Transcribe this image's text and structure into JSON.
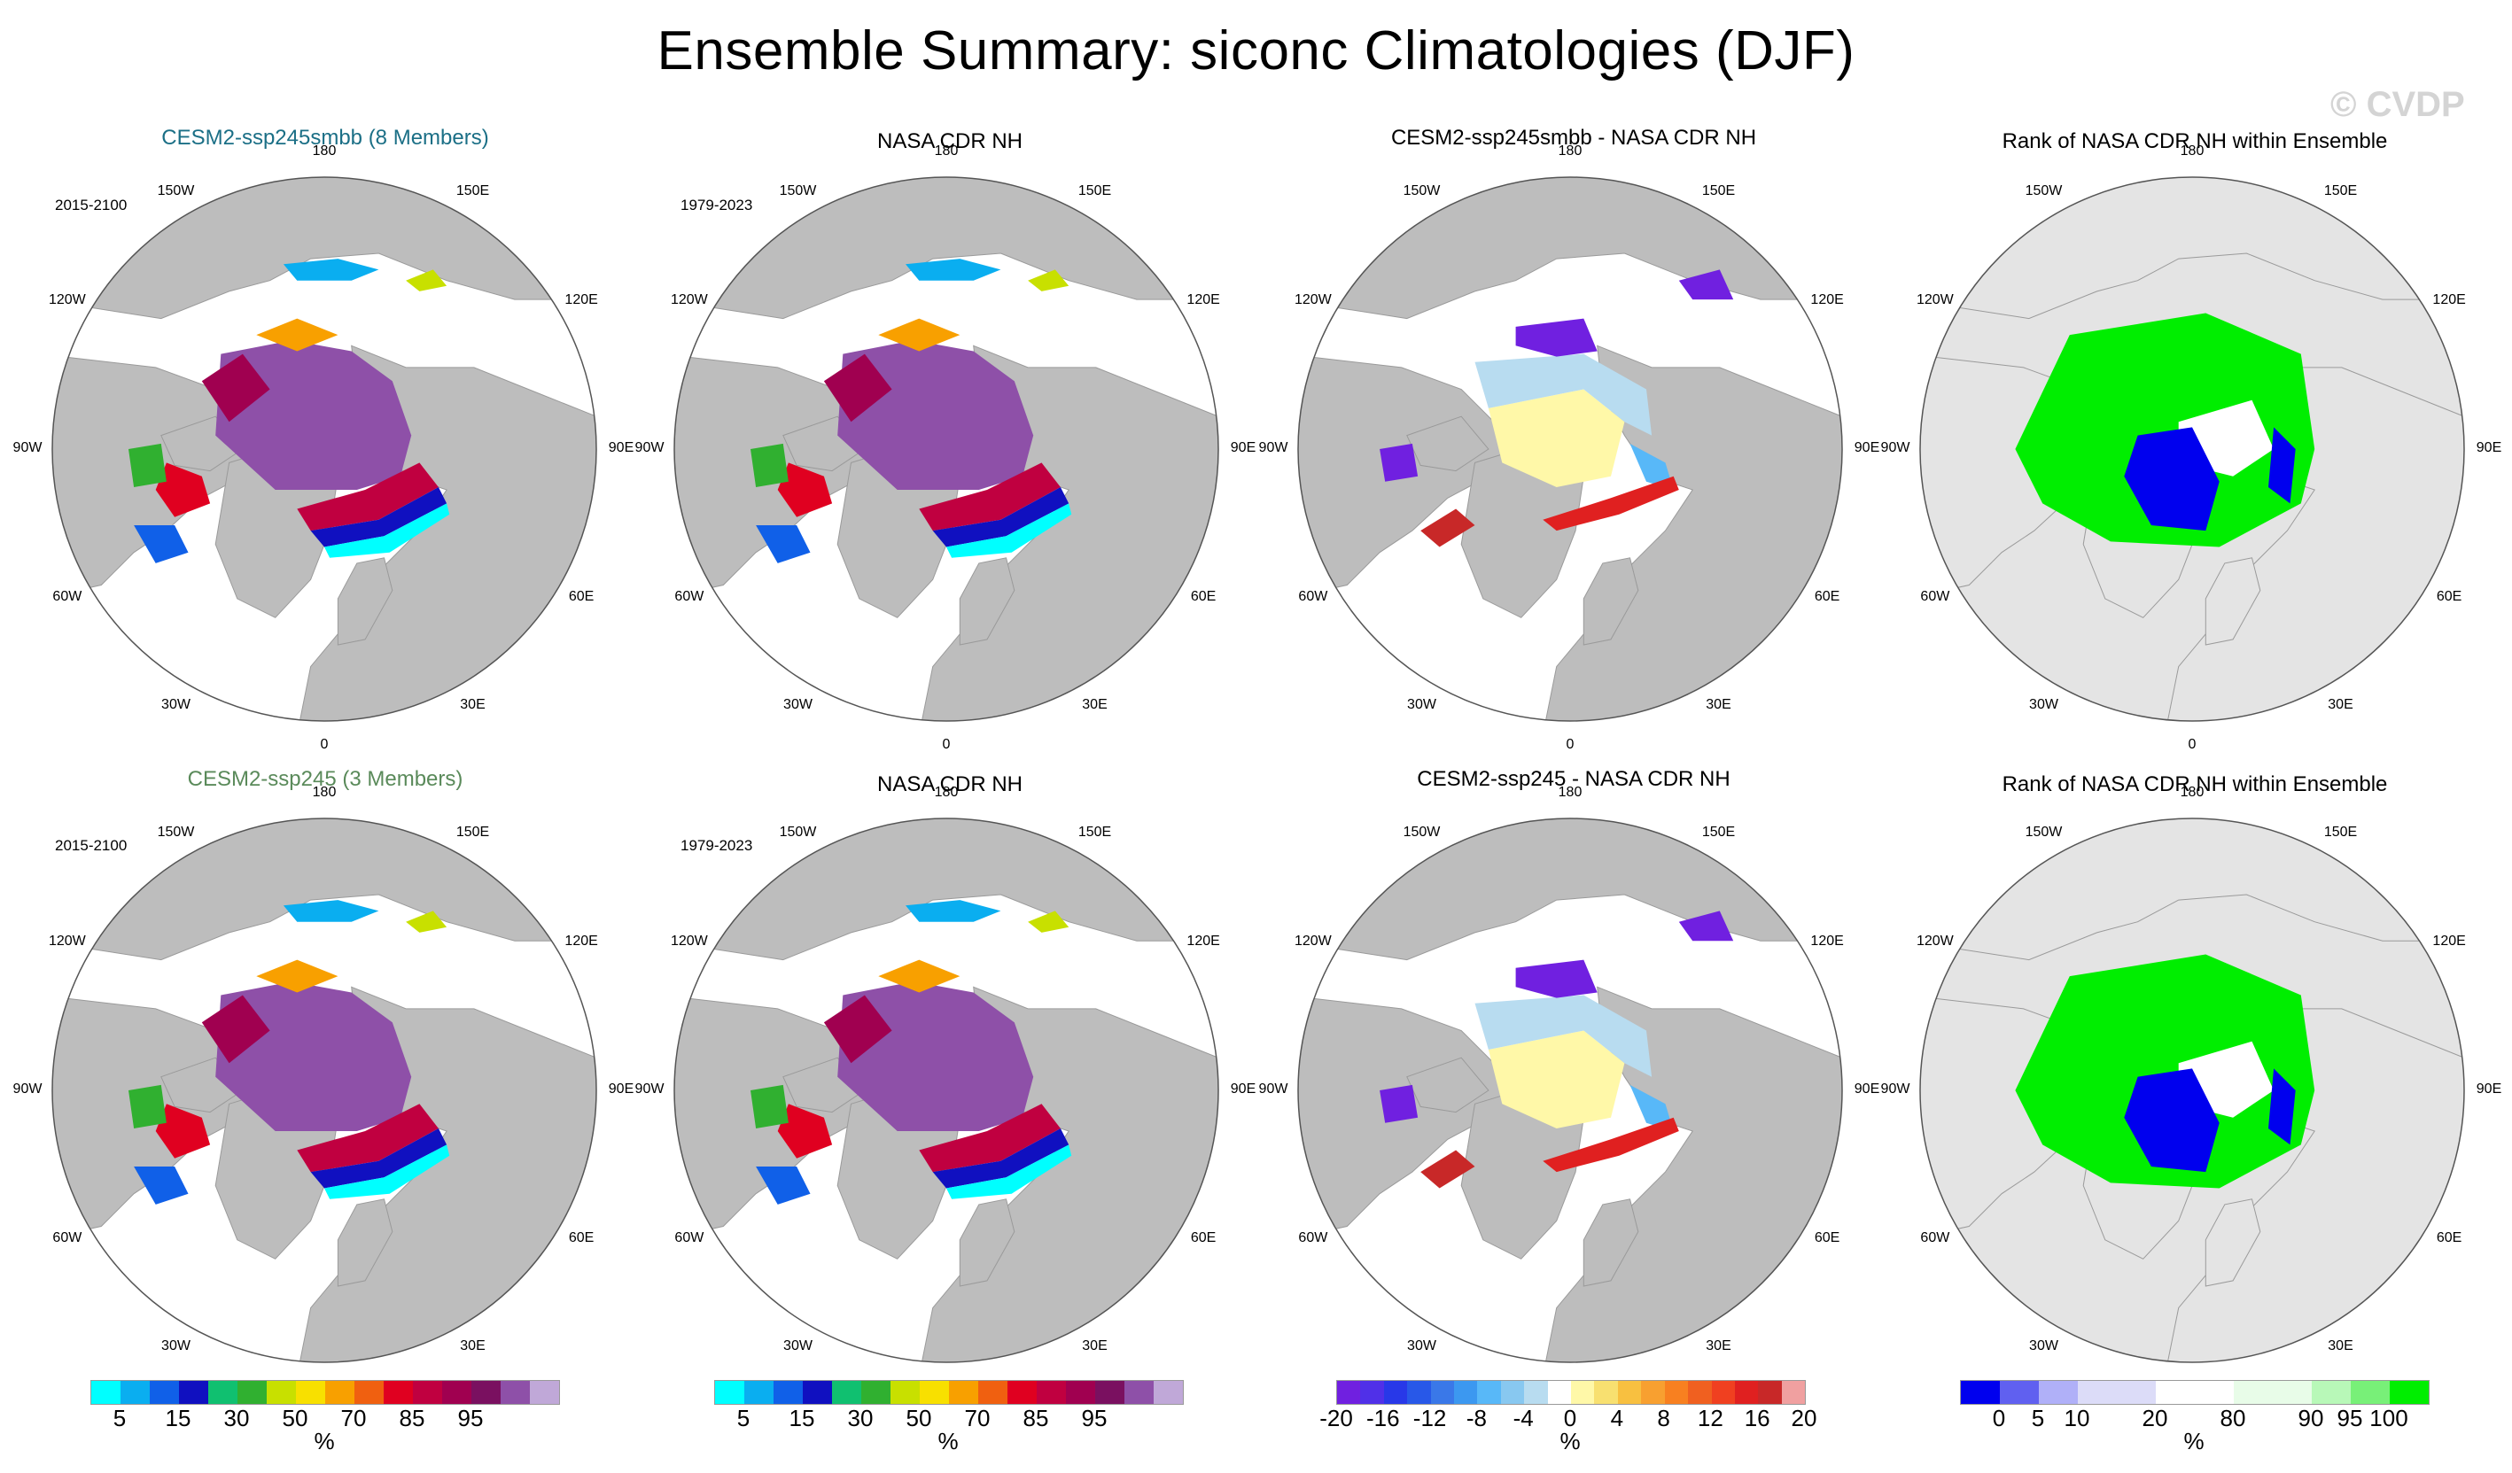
{
  "title": "Ensemble Summary: siconc Climatologies (DJF)",
  "watermark": "© CVDP",
  "chart_data": {
    "type": "heatmap",
    "projection": "north polar stereographic",
    "season": "DJF",
    "variable": "siconc",
    "units": "%",
    "lon_labels": [
      "180",
      "150E",
      "120E",
      "90E",
      "60E",
      "30E",
      "0",
      "30W",
      "60W",
      "90W",
      "120W",
      "150W"
    ],
    "rows": [
      {
        "panels": [
          {
            "title": "CESM2-ssp245smbb (8 Members)",
            "years": "2015-2100",
            "kind": "clim"
          },
          {
            "title": "NASA CDR NH",
            "years": "1979-2023",
            "kind": "clim"
          },
          {
            "title": "CESM2-ssp245smbb - NASA CDR NH",
            "years": "",
            "kind": "diff"
          },
          {
            "title": "Rank of NASA CDR NH within Ensemble",
            "years": "",
            "kind": "rank"
          }
        ]
      },
      {
        "panels": [
          {
            "title": "CESM2-ssp245 (3 Members)",
            "years": "2015-2100",
            "kind": "clim"
          },
          {
            "title": "NASA CDR NH",
            "years": "1979-2023",
            "kind": "clim"
          },
          {
            "title": "CESM2-ssp245 - NASA CDR NH",
            "years": "",
            "kind": "diff"
          },
          {
            "title": "Rank of NASA CDR NH within Ensemble",
            "years": "",
            "kind": "rank"
          }
        ]
      }
    ],
    "colorbars": [
      {
        "kind": "clim",
        "unit": "%",
        "colors": [
          "#00ffff",
          "#0aaef0",
          "#1060e8",
          "#1010c0",
          "#10c070",
          "#30b030",
          "#c8e000",
          "#f8e000",
          "#f8a000",
          "#f06010",
          "#e00020",
          "#c00040",
          "#a00050",
          "#7a1060",
          "#8e50a8",
          "#c0a8d8"
        ],
        "tick_labels": [
          "5",
          "15",
          "30",
          "50",
          "70",
          "85",
          "95"
        ],
        "tick_boundaries": [
          1,
          3,
          5,
          7,
          9,
          11,
          13
        ]
      },
      {
        "kind": "clim",
        "unit": "%",
        "colors": [
          "#00ffff",
          "#0aaef0",
          "#1060e8",
          "#1010c0",
          "#10c070",
          "#30b030",
          "#c8e000",
          "#f8e000",
          "#f8a000",
          "#f06010",
          "#e00020",
          "#c00040",
          "#a00050",
          "#7a1060",
          "#8e50a8",
          "#c0a8d8"
        ],
        "tick_labels": [
          "5",
          "15",
          "30",
          "50",
          "70",
          "85",
          "95"
        ],
        "tick_boundaries": [
          1,
          3,
          5,
          7,
          9,
          11,
          13
        ]
      },
      {
        "kind": "diff",
        "unit": "%",
        "colors": [
          "#7020e0",
          "#5030e8",
          "#2838e8",
          "#2858e8",
          "#3a78e8",
          "#3c98f0",
          "#58b8f8",
          "#88c8f0",
          "#b8dcf0",
          "#ffffff",
          "#fff8a8",
          "#f8e070",
          "#f8c040",
          "#f8a030",
          "#f88020",
          "#f06020",
          "#f04020",
          "#e02020",
          "#c82828",
          "#f0a0a0"
        ],
        "tick_labels": [
          "-20",
          "-16",
          "-12",
          "-8",
          "-4",
          "0",
          "4",
          "8",
          "12",
          "16",
          "20"
        ],
        "tick_boundaries": [
          0,
          2,
          4,
          6,
          8,
          10,
          12,
          14,
          16,
          18,
          20
        ]
      },
      {
        "kind": "rank",
        "unit": "%",
        "colors": [
          "#0000ee",
          "#6060f0",
          "#b0b0f8",
          "#dcdcf8",
          "#dcdcf8",
          "#ffffff",
          "#ffffff",
          "#e8fce8",
          "#e8fce8",
          "#b8f8b8",
          "#78f078",
          "#00ee00"
        ],
        "tick_labels": [
          "0",
          "5",
          "10",
          "20",
          "80",
          "90",
          "95",
          "100"
        ],
        "tick_boundaries": [
          1,
          2,
          3,
          5,
          7,
          9,
          10,
          11
        ]
      }
    ]
  }
}
